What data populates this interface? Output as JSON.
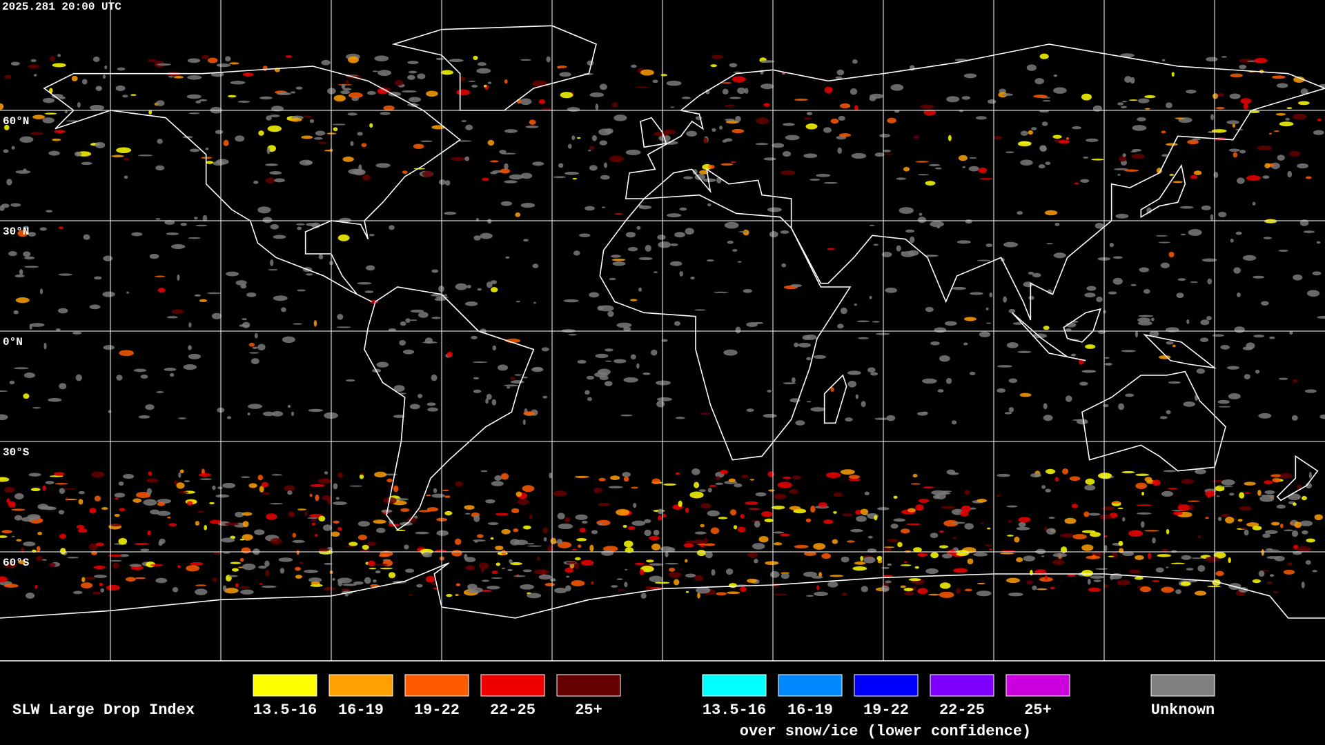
{
  "header": {
    "timestamp": "2025.281 20:00 UTC"
  },
  "map": {
    "latitude_labels": [
      "60°N",
      "30°N",
      "0°N",
      "30°S",
      "60°S"
    ]
  },
  "legend": {
    "title": "SLW Large Drop Index",
    "groups": [
      {
        "items": [
          {
            "label": "13.5-16",
            "color": "#ffff00"
          },
          {
            "label": "16-19",
            "color": "#ff9f00"
          },
          {
            "label": "19-22",
            "color": "#ff5a00"
          },
          {
            "label": "22-25",
            "color": "#ee0000"
          },
          {
            "label": "25+",
            "color": "#650000"
          }
        ]
      },
      {
        "items": [
          {
            "label": "13.5-16",
            "color": "#00ffff"
          },
          {
            "label": "16-19",
            "color": "#0088ff"
          },
          {
            "label": "19-22",
            "color": "#0000ff"
          },
          {
            "label": "22-25",
            "color": "#8000ff"
          },
          {
            "label": "25+",
            "color": "#cc00dd"
          }
        ],
        "caption": "over snow/ice (lower confidence)"
      },
      {
        "items": [
          {
            "label": "Unknown",
            "color": "#808080"
          }
        ]
      }
    ]
  }
}
